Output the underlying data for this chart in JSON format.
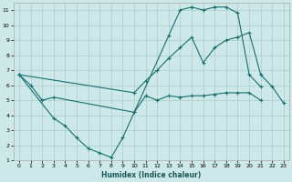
{
  "xlabel": "Humidex (Indice chaleur)",
  "bg_color": "#cce8e8",
  "grid_color": "#aacccc",
  "line_color": "#1a6e6e",
  "xlim": [
    -0.5,
    23.5
  ],
  "ylim": [
    1,
    11.5
  ],
  "xticks": [
    0,
    1,
    2,
    3,
    4,
    5,
    6,
    7,
    8,
    9,
    10,
    11,
    12,
    13,
    14,
    15,
    16,
    17,
    18,
    19,
    20,
    21,
    22,
    23
  ],
  "yticks": [
    1,
    2,
    3,
    4,
    5,
    6,
    7,
    8,
    9,
    10,
    11
  ],
  "line1": {
    "x": [
      0,
      1,
      2,
      3,
      10,
      11,
      12,
      13,
      14,
      15,
      16,
      17,
      18,
      19,
      20,
      21
    ],
    "y": [
      6.7,
      6.0,
      5.0,
      5.2,
      4.2,
      5.3,
      5.0,
      5.3,
      5.2,
      5.3,
      5.3,
      5.4,
      5.5,
      5.5,
      5.5,
      5.0
    ]
  },
  "line2": {
    "x": [
      0,
      3,
      4,
      5,
      6,
      7,
      8,
      9,
      10,
      13,
      14,
      15,
      16,
      17,
      18,
      19,
      20,
      21,
      22,
      23
    ],
    "y": [
      6.7,
      3.8,
      3.3,
      2.5,
      1.8,
      1.5,
      1.2,
      2.5,
      4.2,
      9.3,
      11.0,
      11.2,
      11.0,
      11.2,
      11.2,
      10.8,
      6.7,
      5.9,
      null,
      null
    ]
  },
  "line3": {
    "x": [
      0,
      10,
      11,
      12,
      13,
      14,
      15,
      16,
      17,
      18,
      19,
      20,
      21,
      22,
      23
    ],
    "y": [
      6.7,
      5.5,
      6.3,
      7.0,
      7.8,
      8.5,
      9.2,
      7.5,
      8.5,
      9.0,
      9.2,
      9.5,
      6.7,
      5.9,
      4.8
    ]
  }
}
